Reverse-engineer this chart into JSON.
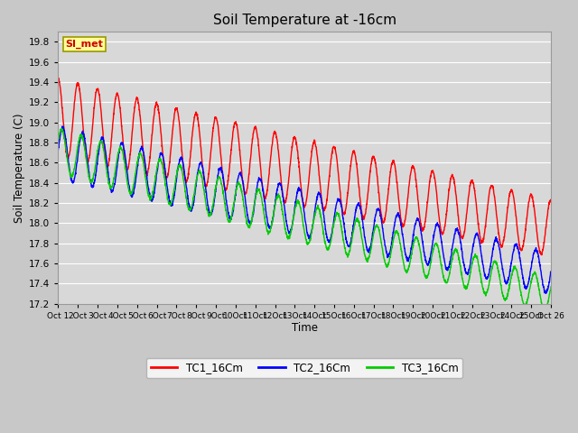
{
  "title": "Soil Temperature at -16cm",
  "xlabel": "Time",
  "ylabel": "Soil Temperature (C)",
  "ylim": [
    17.2,
    19.9
  ],
  "yticks": [
    17.2,
    17.4,
    17.6,
    17.8,
    18.0,
    18.2,
    18.4,
    18.6,
    18.8,
    19.0,
    19.2,
    19.4,
    19.6,
    19.8
  ],
  "line_colors": [
    "#ff0000",
    "#0000ff",
    "#00cc00"
  ],
  "line_labels": [
    "TC1_16Cm",
    "TC2_16Cm",
    "TC3_16Cm"
  ],
  "legend_box_color": "#ffff99",
  "legend_box_edge": "#999900",
  "annotation_text": "SI_met",
  "annotation_color": "#cc0000",
  "figsize": [
    6.4,
    4.8
  ],
  "dpi": 100,
  "n_points": 2600,
  "start_day": 1,
  "end_day": 26
}
